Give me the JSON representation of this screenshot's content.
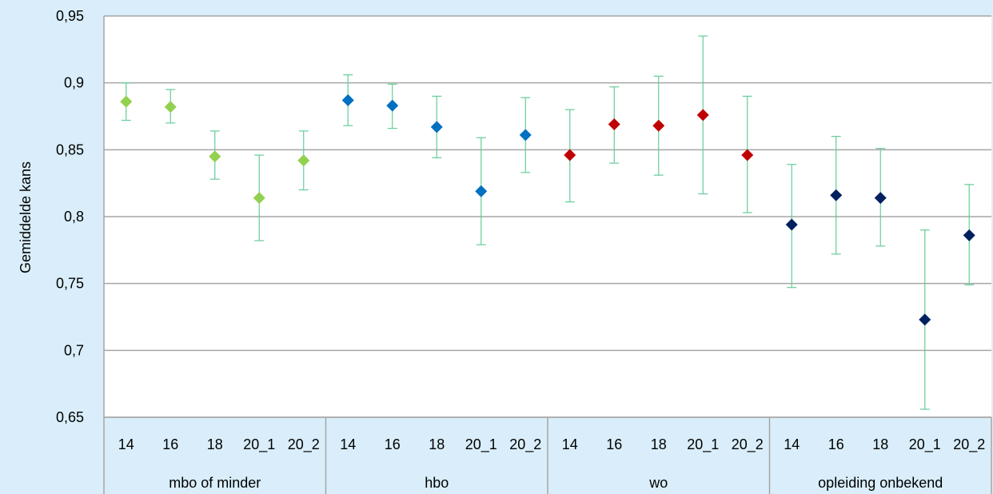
{
  "chart_data": {
    "type": "scatter",
    "ylabel": "Gemiddelde kans",
    "ylim": [
      0.65,
      0.95
    ],
    "yticks": [
      "0,65",
      "0,7",
      "0,75",
      "0,8",
      "0,85",
      "0,9",
      "0,95"
    ],
    "yticks_values": [
      0.65,
      0.7,
      0.75,
      0.8,
      0.85,
      0.9,
      0.95
    ],
    "grid": true,
    "error_bar_color": "#66cc99",
    "groups": [
      {
        "name": "mbo of minder",
        "color": "#92d050",
        "categories": [
          "14",
          "16",
          "18",
          "20_1",
          "20_2"
        ],
        "values": [
          0.886,
          0.882,
          0.845,
          0.814,
          0.842
        ],
        "lower": [
          0.872,
          0.87,
          0.828,
          0.782,
          0.82
        ],
        "upper": [
          0.9,
          0.895,
          0.864,
          0.846,
          0.864
        ]
      },
      {
        "name": "hbo",
        "color": "#0070c0",
        "categories": [
          "14",
          "16",
          "18",
          "20_1",
          "20_2"
        ],
        "values": [
          0.887,
          0.883,
          0.867,
          0.819,
          0.861
        ],
        "lower": [
          0.868,
          0.866,
          0.844,
          0.779,
          0.833
        ],
        "upper": [
          0.906,
          0.899,
          0.89,
          0.859,
          0.889
        ]
      },
      {
        "name": "wo",
        "color": "#c00000",
        "categories": [
          "14",
          "16",
          "18",
          "20_1",
          "20_2"
        ],
        "values": [
          0.846,
          0.869,
          0.868,
          0.876,
          0.846
        ],
        "lower": [
          0.811,
          0.84,
          0.831,
          0.817,
          0.803
        ],
        "upper": [
          0.88,
          0.897,
          0.905,
          0.935,
          0.89
        ]
      },
      {
        "name": "opleiding onbekend",
        "color": "#002060",
        "categories": [
          "14",
          "16",
          "18",
          "20_1",
          "20_2"
        ],
        "values": [
          0.794,
          0.816,
          0.814,
          0.723,
          0.786
        ],
        "lower": [
          0.747,
          0.772,
          0.778,
          0.656,
          0.749
        ],
        "upper": [
          0.839,
          0.86,
          0.851,
          0.79,
          0.824
        ]
      }
    ]
  }
}
